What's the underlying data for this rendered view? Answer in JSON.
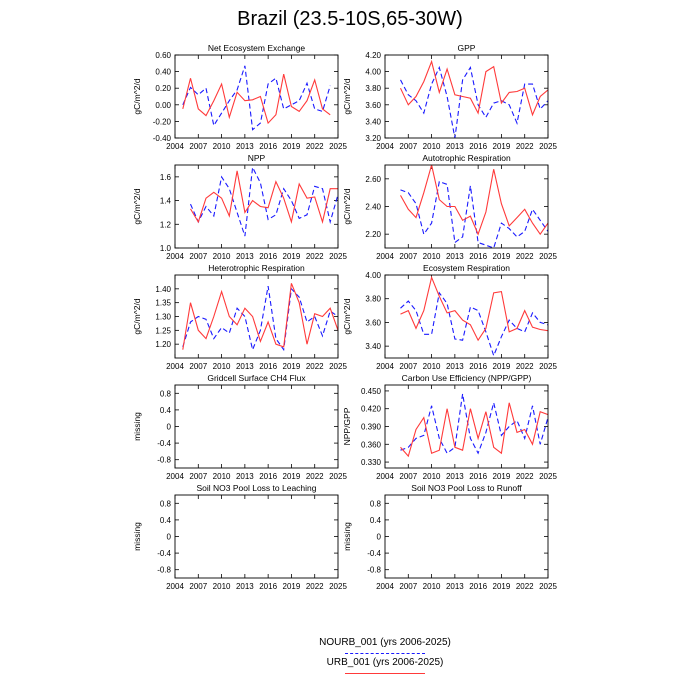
{
  "title": "Brazil (23.5-10S,65-30W)",
  "legend": {
    "entries": [
      {
        "label": "NOURB_001 (yrs 2006-2025)",
        "color": "#1a1aff",
        "style": "dashed"
      },
      {
        "label": "URB_001 (yrs 2006-2025)",
        "color": "#ff3a3a",
        "style": "solid"
      }
    ]
  },
  "chart_data": [
    {
      "type": "line",
      "title": "Net Ecosystem Exchange",
      "ylabel": "gC/m^2/d",
      "xlim": [
        2004,
        2025
      ],
      "ylim": [
        -0.4,
        0.6
      ],
      "xticks": [
        2004,
        2007,
        2010,
        2013,
        2016,
        2019,
        2022,
        2025
      ],
      "xtick_labels": [
        "2004",
        "2007",
        "2010",
        "2013",
        "2016",
        "2019",
        "2022",
        "2025"
      ],
      "yticks": [
        -0.4,
        -0.2,
        0.0,
        0.2,
        0.4,
        0.6
      ],
      "ytick_labels": [
        "-0.40",
        "-0.20",
        "0.00",
        "0.20",
        "0.40",
        "0.60"
      ],
      "x": [
        2005,
        2006,
        2007,
        2008,
        2009,
        2010,
        2011,
        2012,
        2013,
        2014,
        2015,
        2016,
        2017,
        2018,
        2019,
        2020,
        2021,
        2022,
        2023,
        2024
      ],
      "series": [
        {
          "name": "NOURB_001",
          "values": [
            0.0,
            0.21,
            0.12,
            0.2,
            -0.25,
            -0.1,
            0.05,
            0.18,
            0.47,
            -0.3,
            -0.22,
            0.25,
            0.32,
            -0.05,
            0.0,
            0.05,
            0.26,
            -0.05,
            -0.08,
            0.23
          ]
        },
        {
          "name": "URB_001",
          "values": [
            -0.05,
            0.32,
            -0.05,
            -0.13,
            0.05,
            0.25,
            -0.15,
            0.15,
            0.05,
            0.06,
            0.1,
            -0.22,
            -0.12,
            0.37,
            -0.02,
            -0.08,
            0.05,
            0.3,
            -0.05,
            -0.12
          ]
        }
      ]
    },
    {
      "type": "line",
      "title": "GPP",
      "ylabel": "gC/m^2/d",
      "xlim": [
        2004,
        2025
      ],
      "ylim": [
        3.2,
        4.2
      ],
      "xticks": [
        2004,
        2007,
        2010,
        2013,
        2016,
        2019,
        2022,
        2025
      ],
      "xtick_labels": [
        "2004",
        "2007",
        "2010",
        "2013",
        "2016",
        "2019",
        "2022",
        "2025"
      ],
      "yticks": [
        3.2,
        3.4,
        3.6,
        3.8,
        4.0,
        4.2
      ],
      "ytick_labels": [
        "3.20",
        "3.40",
        "3.60",
        "3.80",
        "4.00",
        "4.20"
      ],
      "x": [
        2006,
        2007,
        2008,
        2009,
        2010,
        2011,
        2012,
        2013,
        2014,
        2015,
        2016,
        2017,
        2018,
        2019,
        2020,
        2021,
        2022,
        2023,
        2024,
        2025
      ],
      "series": [
        {
          "name": "NOURB_001",
          "values": [
            3.9,
            3.72,
            3.65,
            3.5,
            3.85,
            4.05,
            3.7,
            3.2,
            3.9,
            4.05,
            3.6,
            3.45,
            3.62,
            3.65,
            3.6,
            3.38,
            3.85,
            3.85,
            3.55,
            3.65
          ]
        },
        {
          "name": "URB_001",
          "values": [
            3.8,
            3.6,
            3.7,
            3.88,
            4.12,
            3.75,
            4.03,
            3.72,
            3.7,
            3.68,
            3.5,
            4.0,
            4.06,
            3.62,
            3.75,
            3.76,
            3.8,
            3.48,
            3.7,
            3.78
          ]
        }
      ]
    },
    {
      "type": "line",
      "title": "NPP",
      "ylabel": "gC/m^2/d",
      "xlim": [
        2004,
        2025
      ],
      "ylim": [
        1.0,
        1.7
      ],
      "xticks": [
        2004,
        2007,
        2010,
        2013,
        2016,
        2019,
        2022,
        2025
      ],
      "xtick_labels": [
        "2004",
        "2007",
        "2010",
        "2013",
        "2016",
        "2019",
        "2022",
        "2025"
      ],
      "yticks": [
        1.0,
        1.2,
        1.4,
        1.6
      ],
      "ytick_labels": [
        "1.0",
        "1.2",
        "1.4",
        "1.6"
      ],
      "x": [
        2006,
        2007,
        2008,
        2009,
        2010,
        2011,
        2012,
        2013,
        2014,
        2015,
        2016,
        2017,
        2018,
        2019,
        2020,
        2021,
        2022,
        2023,
        2024,
        2025
      ],
      "series": [
        {
          "name": "NOURB_001",
          "values": [
            1.37,
            1.22,
            1.35,
            1.27,
            1.6,
            1.5,
            1.3,
            1.1,
            1.68,
            1.55,
            1.24,
            1.28,
            1.5,
            1.4,
            1.25,
            1.28,
            1.52,
            1.5,
            1.22,
            1.45
          ]
        },
        {
          "name": "URB_001",
          "values": [
            1.33,
            1.22,
            1.42,
            1.47,
            1.42,
            1.27,
            1.65,
            1.3,
            1.4,
            1.35,
            1.34,
            1.56,
            1.42,
            1.22,
            1.54,
            1.42,
            1.43,
            1.22,
            1.5,
            1.5
          ]
        }
      ]
    },
    {
      "type": "line",
      "title": "Autotrophic Respiration",
      "ylabel": "gC/m^2/d",
      "xlim": [
        2004,
        2025
      ],
      "ylim": [
        2.1,
        2.7
      ],
      "xticks": [
        2004,
        2007,
        2010,
        2013,
        2016,
        2019,
        2022,
        2025
      ],
      "xtick_labels": [
        "2004",
        "2007",
        "2010",
        "2013",
        "2016",
        "2019",
        "2022",
        "2025"
      ],
      "yticks": [
        2.2,
        2.4,
        2.6
      ],
      "ytick_labels": [
        "2.20",
        "2.40",
        "2.60"
      ],
      "x": [
        2006,
        2007,
        2008,
        2009,
        2010,
        2011,
        2012,
        2013,
        2014,
        2015,
        2016,
        2017,
        2018,
        2019,
        2020,
        2021,
        2022,
        2023,
        2024,
        2025
      ],
      "series": [
        {
          "name": "NOURB_001",
          "values": [
            2.52,
            2.5,
            2.42,
            2.2,
            2.28,
            2.58,
            2.56,
            2.14,
            2.18,
            2.55,
            2.14,
            2.12,
            2.1,
            2.28,
            2.24,
            2.18,
            2.22,
            2.38,
            2.3,
            2.22
          ]
        },
        {
          "name": "URB_001",
          "values": [
            2.48,
            2.38,
            2.32,
            2.5,
            2.7,
            2.45,
            2.4,
            2.4,
            2.3,
            2.33,
            2.2,
            2.36,
            2.67,
            2.42,
            2.26,
            2.32,
            2.38,
            2.28,
            2.2,
            2.28
          ]
        }
      ]
    },
    {
      "type": "line",
      "title": "Heterotrophic Respiration",
      "ylabel": "gC/m^2/d",
      "xlim": [
        2004,
        2025
      ],
      "ylim": [
        1.15,
        1.45
      ],
      "xticks": [
        2004,
        2007,
        2010,
        2013,
        2016,
        2019,
        2022,
        2025
      ],
      "xtick_labels": [
        "2004",
        "2007",
        "2010",
        "2013",
        "2016",
        "2019",
        "2022",
        "2025"
      ],
      "yticks": [
        1.2,
        1.25,
        1.3,
        1.35,
        1.4
      ],
      "ytick_labels": [
        "1.20",
        "1.25",
        "1.30",
        "1.35",
        "1.40"
      ],
      "x": [
        2005,
        2006,
        2007,
        2008,
        2009,
        2010,
        2011,
        2012,
        2013,
        2014,
        2015,
        2016,
        2017,
        2018,
        2019,
        2020,
        2021,
        2022,
        2023,
        2024,
        2025
      ],
      "series": [
        {
          "name": "NOURB_001",
          "values": [
            1.19,
            1.28,
            1.3,
            1.29,
            1.22,
            1.26,
            1.24,
            1.33,
            1.3,
            1.18,
            1.25,
            1.41,
            1.22,
            1.18,
            1.4,
            1.37,
            1.28,
            1.3,
            1.23,
            1.32,
            1.3
          ]
        },
        {
          "name": "URB_001",
          "values": [
            1.18,
            1.35,
            1.25,
            1.22,
            1.3,
            1.39,
            1.3,
            1.27,
            1.33,
            1.3,
            1.21,
            1.28,
            1.2,
            1.19,
            1.42,
            1.35,
            1.2,
            1.31,
            1.3,
            1.33,
            1.25
          ]
        }
      ]
    },
    {
      "type": "line",
      "title": "Ecosystem Respiration",
      "ylabel": "gC/m^2/d",
      "xlim": [
        2004,
        2025
      ],
      "ylim": [
        3.3,
        4.0
      ],
      "xticks": [
        2004,
        2007,
        2010,
        2013,
        2016,
        2019,
        2022,
        2025
      ],
      "xtick_labels": [
        "2004",
        "2007",
        "2010",
        "2013",
        "2016",
        "2019",
        "2022",
        "2025"
      ],
      "yticks": [
        3.4,
        3.6,
        3.8,
        4.0
      ],
      "ytick_labels": [
        "3.40",
        "3.60",
        "3.80",
        "4.00"
      ],
      "x": [
        2006,
        2007,
        2008,
        2009,
        2010,
        2011,
        2012,
        2013,
        2014,
        2015,
        2016,
        2017,
        2018,
        2019,
        2020,
        2021,
        2022,
        2023,
        2024,
        2025
      ],
      "series": [
        {
          "name": "NOURB_001",
          "values": [
            3.72,
            3.78,
            3.7,
            3.5,
            3.5,
            3.85,
            3.76,
            3.46,
            3.45,
            3.73,
            3.7,
            3.52,
            3.32,
            3.48,
            3.62,
            3.55,
            3.52,
            3.68,
            3.6,
            3.58
          ]
        },
        {
          "name": "URB_001",
          "values": [
            3.67,
            3.7,
            3.55,
            3.7,
            3.98,
            3.82,
            3.68,
            3.7,
            3.62,
            3.58,
            3.45,
            3.55,
            3.85,
            3.86,
            3.52,
            3.55,
            3.7,
            3.56,
            3.54,
            3.53
          ]
        }
      ]
    },
    {
      "type": "line",
      "title": "Gridcell Surface CH4 Flux",
      "ylabel": "missing",
      "xlim": [
        2004,
        2025
      ],
      "ylim": [
        -1.0,
        1.0
      ],
      "xticks": [
        2004,
        2007,
        2010,
        2013,
        2016,
        2019,
        2022,
        2025
      ],
      "xtick_labels": [
        "2004",
        "2007",
        "2010",
        "2013",
        "2016",
        "2019",
        "2022",
        "2025"
      ],
      "yticks": [
        -0.8,
        -0.4,
        0.0,
        0.4,
        0.8
      ],
      "ytick_labels": [
        "-0.8",
        "-0.4",
        "0",
        "0.4",
        "0.8"
      ],
      "x": [],
      "series": []
    },
    {
      "type": "line",
      "title": "Carbon Use Efficiency (NPP/GPP)",
      "ylabel": "NPP/GPP",
      "xlim": [
        2004,
        2025
      ],
      "ylim": [
        0.32,
        0.46
      ],
      "xticks": [
        2004,
        2007,
        2010,
        2013,
        2016,
        2019,
        2022,
        2025
      ],
      "xtick_labels": [
        "2004",
        "2007",
        "2010",
        "2013",
        "2016",
        "2019",
        "2022",
        "2025"
      ],
      "yticks": [
        0.33,
        0.36,
        0.39,
        0.42,
        0.45
      ],
      "ytick_labels": [
        "0.330",
        "0.360",
        "0.390",
        "0.420",
        "0.450"
      ],
      "x": [
        2006,
        2007,
        2008,
        2009,
        2010,
        2011,
        2012,
        2013,
        2014,
        2015,
        2016,
        2017,
        2018,
        2019,
        2020,
        2021,
        2022,
        2023,
        2024,
        2025
      ],
      "series": [
        {
          "name": "NOURB_001",
          "values": [
            0.35,
            0.355,
            0.37,
            0.375,
            0.425,
            0.37,
            0.345,
            0.355,
            0.445,
            0.37,
            0.345,
            0.38,
            0.43,
            0.375,
            0.39,
            0.4,
            0.37,
            0.425,
            0.36,
            0.405
          ]
        },
        {
          "name": "URB_001",
          "values": [
            0.355,
            0.34,
            0.385,
            0.405,
            0.345,
            0.35,
            0.42,
            0.355,
            0.35,
            0.42,
            0.37,
            0.415,
            0.355,
            0.345,
            0.43,
            0.38,
            0.385,
            0.36,
            0.415,
            0.41
          ]
        }
      ]
    },
    {
      "type": "line",
      "title": "Soil NO3 Pool Loss to Leaching",
      "ylabel": "missing",
      "xlim": [
        2004,
        2025
      ],
      "ylim": [
        -1.0,
        1.0
      ],
      "xticks": [
        2004,
        2007,
        2010,
        2013,
        2016,
        2019,
        2022,
        2025
      ],
      "xtick_labels": [
        "2004",
        "2007",
        "2010",
        "2013",
        "2016",
        "2019",
        "2022",
        "2025"
      ],
      "yticks": [
        -0.8,
        -0.4,
        0.0,
        0.4,
        0.8
      ],
      "ytick_labels": [
        "-0.8",
        "-0.4",
        "0",
        "0.4",
        "0.8"
      ],
      "x": [],
      "series": []
    },
    {
      "type": "line",
      "title": "Soil NO3 Pool Loss to Runoff",
      "ylabel": "missing",
      "xlim": [
        2004,
        2025
      ],
      "ylim": [
        -1.0,
        1.0
      ],
      "xticks": [
        2004,
        2007,
        2010,
        2013,
        2016,
        2019,
        2022,
        2025
      ],
      "xtick_labels": [
        "2004",
        "2007",
        "2010",
        "2013",
        "2016",
        "2019",
        "2022",
        "2025"
      ],
      "yticks": [
        -0.8,
        -0.4,
        0.0,
        0.4,
        0.8
      ],
      "ytick_labels": [
        "-0.8",
        "-0.4",
        "0",
        "0.4",
        "0.8"
      ],
      "x": [],
      "series": []
    }
  ]
}
